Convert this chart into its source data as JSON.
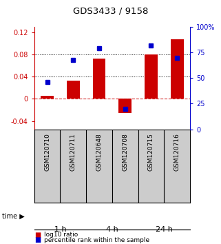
{
  "title": "GDS3433 / 9158",
  "categories": [
    "GSM120710",
    "GSM120711",
    "GSM120648",
    "GSM120708",
    "GSM120715",
    "GSM120716"
  ],
  "log10_ratio": [
    0.005,
    0.033,
    0.073,
    -0.025,
    0.08,
    0.108
  ],
  "percentile_rank": [
    46,
    68,
    79,
    20,
    82,
    70
  ],
  "time_groups": [
    {
      "label": "1 h",
      "cols": [
        0,
        1
      ],
      "color": "#c8f0c8"
    },
    {
      "label": "4 h",
      "cols": [
        2,
        3
      ],
      "color": "#90d890"
    },
    {
      "label": "24 h",
      "cols": [
        4,
        5
      ],
      "color": "#48c048"
    }
  ],
  "ylim_left": [
    -0.055,
    0.13
  ],
  "ylim_right": [
    0,
    100
  ],
  "yticks_left": [
    -0.04,
    0.0,
    0.04,
    0.08,
    0.12
  ],
  "yticks_right": [
    0,
    25,
    50,
    75,
    100
  ],
  "hlines": [
    0.04,
    0.08
  ],
  "bar_color": "#cc0000",
  "dot_color": "#0000cc",
  "bar_width": 0.5,
  "background_color": "#ffffff",
  "legend_items": [
    "log10 ratio",
    "percentile rank within the sample"
  ]
}
